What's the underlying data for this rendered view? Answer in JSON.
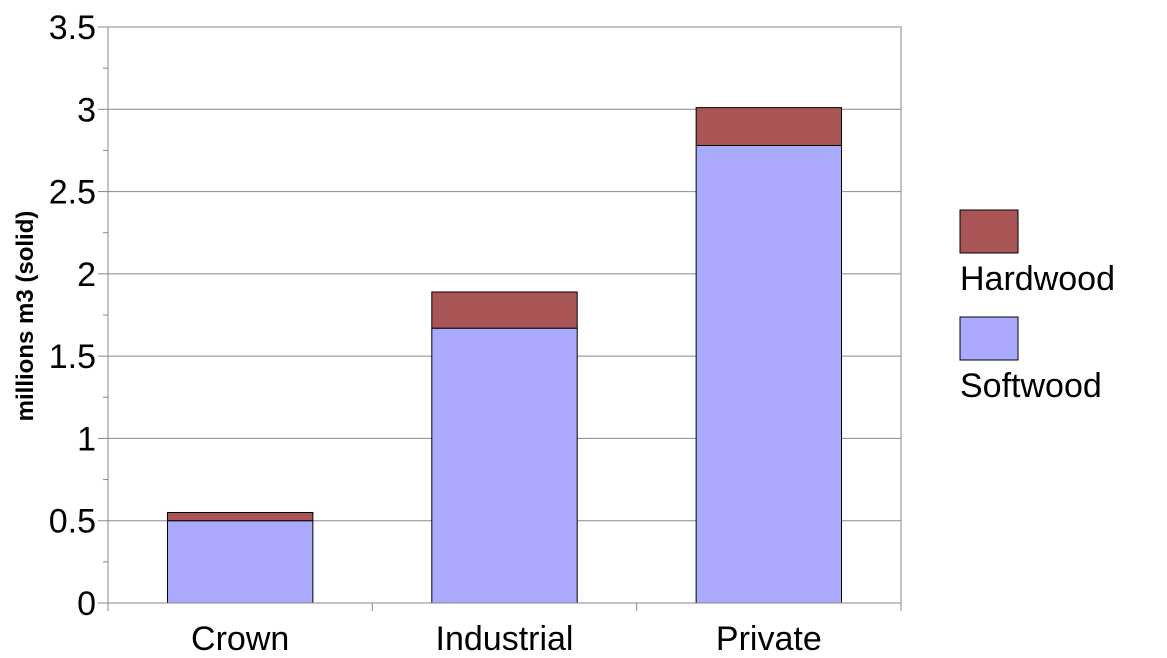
{
  "chart_data": {
    "type": "bar",
    "stacked": true,
    "categories": [
      "Crown",
      "Industrial",
      "Private"
    ],
    "series": [
      {
        "name": "Softwood",
        "values": [
          0.5,
          1.67,
          2.78
        ],
        "color": "#aaaaff"
      },
      {
        "name": "Hardwood",
        "values": [
          0.05,
          0.22,
          0.23
        ],
        "color": "#aa5555"
      }
    ],
    "title": "",
    "xlabel": "",
    "ylabel": "millions m3 (solid)",
    "ylim": [
      0,
      3.5
    ],
    "yticks": [
      0,
      0.5,
      1,
      1.5,
      2,
      2.5,
      3,
      3.5
    ],
    "ytick_labels": [
      "0",
      "0.5",
      "1",
      "1.5",
      "2",
      "2.5",
      "3",
      "3.5"
    ],
    "grid": "horizontal",
    "legend_position": "right",
    "legend_order": [
      "Hardwood",
      "Softwood"
    ]
  }
}
